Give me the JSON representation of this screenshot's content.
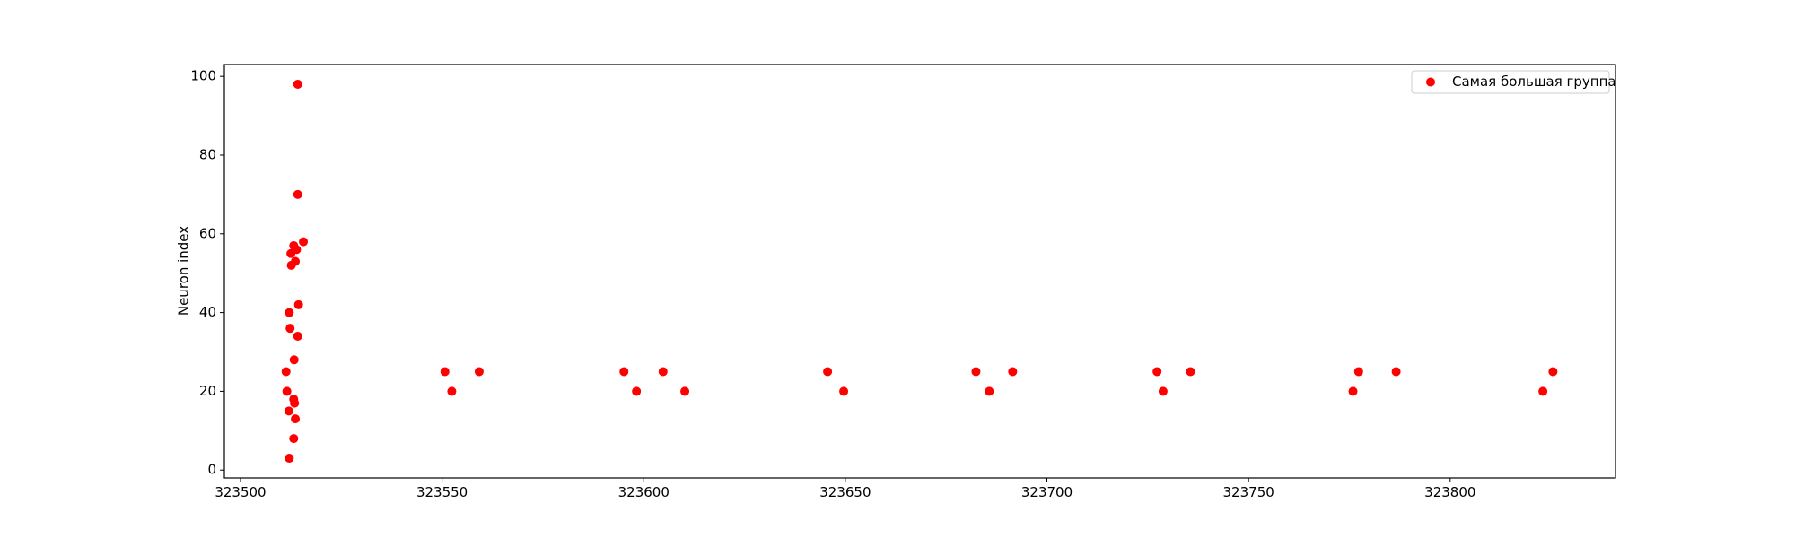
{
  "chart_data": {
    "type": "scatter",
    "title": "",
    "xlabel": "",
    "ylabel": "Neuron index",
    "xlim": [
      323496,
      323841
    ],
    "ylim": [
      -2,
      103
    ],
    "xticks": [
      323500,
      323550,
      323600,
      323650,
      323700,
      323750,
      323800
    ],
    "xtick_labels": [
      "323500",
      "323550",
      "323600",
      "323650",
      "323700",
      "323750",
      "323800"
    ],
    "yticks": [
      0,
      20,
      40,
      60,
      80,
      100
    ],
    "ytick_labels": [
      "0",
      "20",
      "40",
      "60",
      "80",
      "100"
    ],
    "grid": false,
    "legend_position": "top-right",
    "series": [
      {
        "name": "Самая большая группа",
        "color": "#ff0000",
        "marker": "circle",
        "points": [
          [
            323512.1,
            3
          ],
          [
            323513.2,
            8
          ],
          [
            323513.6,
            13
          ],
          [
            323512.0,
            15
          ],
          [
            323513.4,
            17
          ],
          [
            323513.2,
            18
          ],
          [
            323511.5,
            20
          ],
          [
            323511.3,
            25
          ],
          [
            323513.3,
            28
          ],
          [
            323514.2,
            34
          ],
          [
            323512.3,
            36
          ],
          [
            323512.1,
            40
          ],
          [
            323514.4,
            42
          ],
          [
            323512.6,
            52
          ],
          [
            323513.6,
            53
          ],
          [
            323512.5,
            55
          ],
          [
            323513.9,
            56
          ],
          [
            323513.2,
            57
          ],
          [
            323515.6,
            58
          ],
          [
            323514.2,
            70
          ],
          [
            323514.2,
            98
          ],
          [
            323550.7,
            25
          ],
          [
            323552.4,
            20
          ],
          [
            323559.2,
            25
          ],
          [
            323595.1,
            25
          ],
          [
            323598.2,
            20
          ],
          [
            323604.8,
            25
          ],
          [
            323610.2,
            20
          ],
          [
            323645.6,
            25
          ],
          [
            323649.6,
            20
          ],
          [
            323682.4,
            25
          ],
          [
            323685.7,
            20
          ],
          [
            323691.5,
            25
          ],
          [
            323727.3,
            25
          ],
          [
            323728.8,
            20
          ],
          [
            323735.6,
            25
          ],
          [
            323775.9,
            20
          ],
          [
            323777.3,
            25
          ],
          [
            323786.6,
            25
          ],
          [
            323823.0,
            20
          ],
          [
            323825.5,
            25
          ]
        ]
      }
    ]
  }
}
